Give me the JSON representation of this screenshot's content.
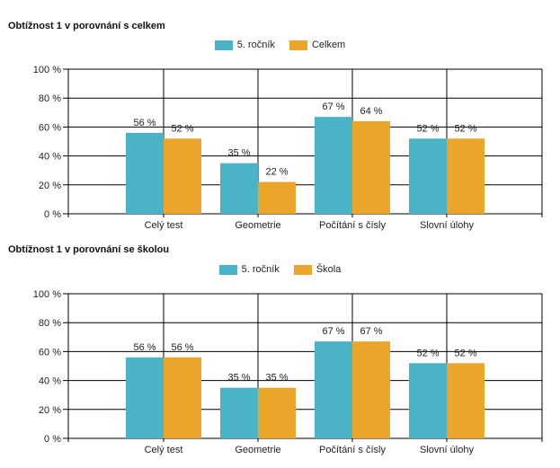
{
  "colors": {
    "series1": "#4ab3c6",
    "series2": "#eba52a"
  },
  "chart_data": [
    {
      "type": "bar",
      "title": "Obtížnost 1 v porovnání s celkem",
      "categories": [
        "Celý test",
        "Geometrie",
        "Počítání s čísly",
        "Slovní úlohy"
      ],
      "series": [
        {
          "name": "5. ročník",
          "values": [
            56,
            35,
            67,
            52
          ],
          "labels": [
            "56 %",
            "35 %",
            "67 %",
            "52 %"
          ]
        },
        {
          "name": "Celkem",
          "values": [
            52,
            22,
            64,
            52
          ],
          "labels": [
            "52 %",
            "22 %",
            "64 %",
            "52 %"
          ]
        }
      ],
      "ylim": [
        0,
        100
      ],
      "yticks": [
        "0 %",
        "20 %",
        "40 %",
        "60 %",
        "80 %",
        "100 %"
      ],
      "grid": true,
      "legend": "top-center"
    },
    {
      "type": "bar",
      "title": "Obtížnost 1 v porovnání se školou",
      "categories": [
        "Celý test",
        "Geometrie",
        "Počítání s čísly",
        "Slovní úlohy"
      ],
      "series": [
        {
          "name": "5. ročník",
          "values": [
            56,
            35,
            67,
            52
          ],
          "labels": [
            "56 %",
            "35 %",
            "67 %",
            "52 %"
          ]
        },
        {
          "name": "Škola",
          "values": [
            56,
            35,
            67,
            52
          ],
          "labels": [
            "56 %",
            "35 %",
            "67 %",
            "52 %"
          ]
        }
      ],
      "ylim": [
        0,
        100
      ],
      "yticks": [
        "0 %",
        "20 %",
        "40 %",
        "60 %",
        "80 %",
        "100 %"
      ],
      "grid": true,
      "legend": "top-center"
    }
  ]
}
